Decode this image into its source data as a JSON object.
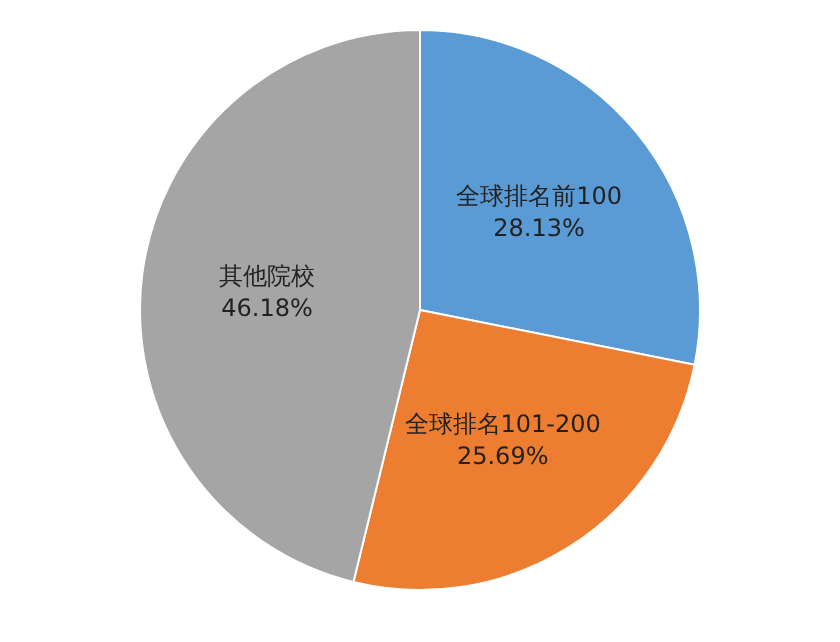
{
  "chart_data": {
    "type": "pie",
    "categories": [
      "全球排名前100",
      "全球排名101-200",
      "其他院校"
    ],
    "values": [
      28.13,
      25.69,
      46.18
    ],
    "value_labels": [
      "28.13%",
      "25.69%",
      "46.18%"
    ],
    "colors": [
      "#5b9bd5",
      "#ed7d31",
      "#a5a5a5"
    ]
  }
}
